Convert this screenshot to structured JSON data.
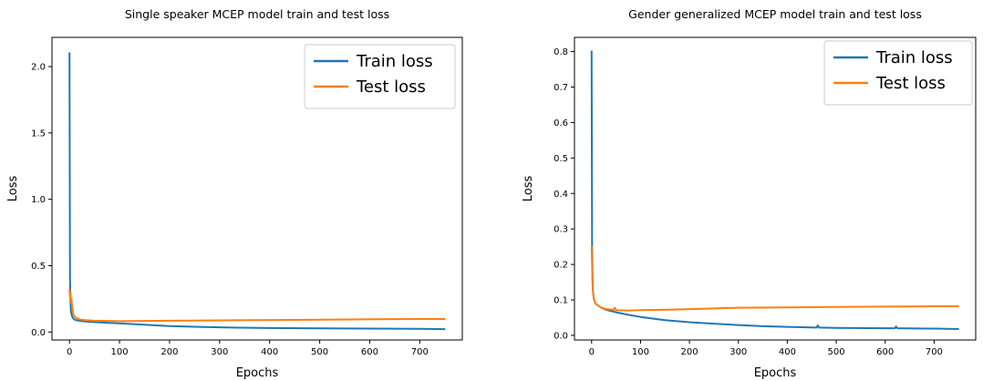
{
  "colors": {
    "train": "#1f77b4",
    "test": "#ff7f0e",
    "frame": "#000000"
  },
  "chart_data": [
    {
      "type": "line",
      "title": "Single speaker MCEP model train and test loss",
      "xlabel": "Epochs",
      "ylabel": "Loss",
      "xlim": [
        -35,
        785
      ],
      "ylim": [
        -0.06,
        2.22
      ],
      "xticks": [
        0,
        100,
        200,
        300,
        400,
        500,
        600,
        700
      ],
      "yticks": [
        0.0,
        0.5,
        1.0,
        1.5,
        2.0
      ],
      "ytick_labels": [
        "0.0",
        "0.5",
        "1.0",
        "1.5",
        "2.0"
      ],
      "legend": {
        "location": "upper right",
        "entries": [
          "Train loss",
          "Test loss"
        ]
      },
      "grid": false,
      "series": [
        {
          "name": "Train loss",
          "color": "#1f77b4",
          "x": [
            0,
            1,
            2,
            3,
            5,
            8,
            12,
            20,
            30,
            50,
            75,
            100,
            150,
            200,
            250,
            300,
            400,
            500,
            600,
            700,
            749
          ],
          "y": [
            2.1,
            0.4,
            0.22,
            0.15,
            0.12,
            0.1,
            0.09,
            0.085,
            0.08,
            0.075,
            0.07,
            0.065,
            0.055,
            0.045,
            0.04,
            0.035,
            0.03,
            0.028,
            0.026,
            0.024,
            0.022
          ]
        },
        {
          "name": "Test loss",
          "color": "#ff7f0e",
          "x": [
            0,
            1,
            2,
            3,
            4,
            5,
            8,
            12,
            20,
            30,
            50,
            100,
            150,
            200,
            300,
            400,
            500,
            600,
            700,
            749
          ],
          "y": [
            0.32,
            0.26,
            0.3,
            0.22,
            0.25,
            0.2,
            0.13,
            0.11,
            0.095,
            0.09,
            0.085,
            0.082,
            0.083,
            0.085,
            0.088,
            0.09,
            0.093,
            0.096,
            0.098,
            0.098
          ]
        }
      ]
    },
    {
      "type": "line",
      "title": "Gender generalized MCEP model train and test loss",
      "xlabel": "Epochs",
      "ylabel": "Loss",
      "xlim": [
        -35,
        785
      ],
      "ylim": [
        -0.013,
        0.84
      ],
      "xticks": [
        0,
        100,
        200,
        300,
        400,
        500,
        600,
        700
      ],
      "yticks": [
        0.0,
        0.1,
        0.2,
        0.3,
        0.4,
        0.5,
        0.6,
        0.7,
        0.8
      ],
      "ytick_labels": [
        "0.0",
        "0.1",
        "0.2",
        "0.3",
        "0.4",
        "0.5",
        "0.6",
        "0.7",
        "0.8"
      ],
      "legend": {
        "location": "upper right",
        "entries": [
          "Train loss",
          "Test loss"
        ]
      },
      "grid": false,
      "series": [
        {
          "name": "Train loss",
          "color": "#1f77b4",
          "x": [
            0,
            1,
            2,
            3,
            5,
            8,
            12,
            20,
            30,
            50,
            75,
            100,
            150,
            200,
            250,
            300,
            350,
            400,
            460,
            462,
            465,
            500,
            600,
            620,
            622,
            625,
            700,
            749
          ],
          "y": [
            0.8,
            0.25,
            0.15,
            0.12,
            0.1,
            0.09,
            0.085,
            0.078,
            0.072,
            0.065,
            0.058,
            0.052,
            0.043,
            0.037,
            0.033,
            0.029,
            0.026,
            0.024,
            0.022,
            0.028,
            0.022,
            0.021,
            0.02,
            0.02,
            0.025,
            0.02,
            0.019,
            0.018
          ]
        },
        {
          "name": "Test loss",
          "color": "#ff7f0e",
          "x": [
            0,
            1,
            2,
            3,
            5,
            8,
            12,
            20,
            30,
            45,
            47,
            50,
            75,
            100,
            150,
            200,
            250,
            300,
            400,
            500,
            600,
            700,
            749
          ],
          "y": [
            0.25,
            0.2,
            0.15,
            0.12,
            0.1,
            0.09,
            0.085,
            0.078,
            0.074,
            0.072,
            0.078,
            0.071,
            0.07,
            0.071,
            0.072,
            0.074,
            0.076,
            0.078,
            0.079,
            0.08,
            0.081,
            0.082,
            0.082
          ]
        }
      ]
    }
  ]
}
